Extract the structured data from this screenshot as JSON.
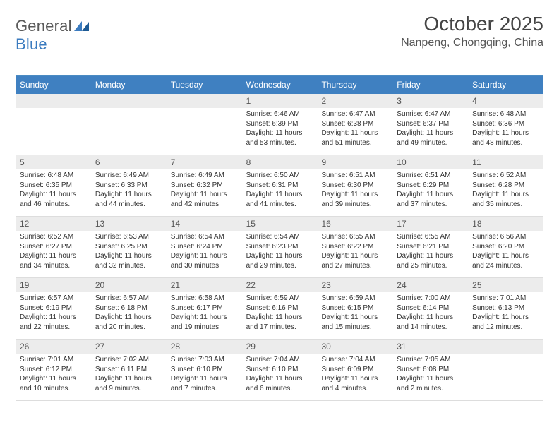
{
  "logo": {
    "text1": "General",
    "text2": "Blue"
  },
  "colors": {
    "headerBar": "#3f80c1",
    "headerBarTop": "#4a8bc2",
    "dayNumBg": "#ececec",
    "text": "#333333",
    "subtext": "#555555",
    "white": "#ffffff",
    "logoBlue": "#3b7bbf",
    "rowBorder": "#dddddd"
  },
  "header": {
    "title": "October 2025",
    "subtitle": "Nanpeng, Chongqing, China"
  },
  "dayNames": [
    "Sunday",
    "Monday",
    "Tuesday",
    "Wednesday",
    "Thursday",
    "Friday",
    "Saturday"
  ],
  "weeks": [
    [
      {
        "num": "",
        "lines": []
      },
      {
        "num": "",
        "lines": []
      },
      {
        "num": "",
        "lines": []
      },
      {
        "num": "1",
        "lines": [
          "Sunrise: 6:46 AM",
          "Sunset: 6:39 PM",
          "Daylight: 11 hours",
          "and 53 minutes."
        ]
      },
      {
        "num": "2",
        "lines": [
          "Sunrise: 6:47 AM",
          "Sunset: 6:38 PM",
          "Daylight: 11 hours",
          "and 51 minutes."
        ]
      },
      {
        "num": "3",
        "lines": [
          "Sunrise: 6:47 AM",
          "Sunset: 6:37 PM",
          "Daylight: 11 hours",
          "and 49 minutes."
        ]
      },
      {
        "num": "4",
        "lines": [
          "Sunrise: 6:48 AM",
          "Sunset: 6:36 PM",
          "Daylight: 11 hours",
          "and 48 minutes."
        ]
      }
    ],
    [
      {
        "num": "5",
        "lines": [
          "Sunrise: 6:48 AM",
          "Sunset: 6:35 PM",
          "Daylight: 11 hours",
          "and 46 minutes."
        ]
      },
      {
        "num": "6",
        "lines": [
          "Sunrise: 6:49 AM",
          "Sunset: 6:33 PM",
          "Daylight: 11 hours",
          "and 44 minutes."
        ]
      },
      {
        "num": "7",
        "lines": [
          "Sunrise: 6:49 AM",
          "Sunset: 6:32 PM",
          "Daylight: 11 hours",
          "and 42 minutes."
        ]
      },
      {
        "num": "8",
        "lines": [
          "Sunrise: 6:50 AM",
          "Sunset: 6:31 PM",
          "Daylight: 11 hours",
          "and 41 minutes."
        ]
      },
      {
        "num": "9",
        "lines": [
          "Sunrise: 6:51 AM",
          "Sunset: 6:30 PM",
          "Daylight: 11 hours",
          "and 39 minutes."
        ]
      },
      {
        "num": "10",
        "lines": [
          "Sunrise: 6:51 AM",
          "Sunset: 6:29 PM",
          "Daylight: 11 hours",
          "and 37 minutes."
        ]
      },
      {
        "num": "11",
        "lines": [
          "Sunrise: 6:52 AM",
          "Sunset: 6:28 PM",
          "Daylight: 11 hours",
          "and 35 minutes."
        ]
      }
    ],
    [
      {
        "num": "12",
        "lines": [
          "Sunrise: 6:52 AM",
          "Sunset: 6:27 PM",
          "Daylight: 11 hours",
          "and 34 minutes."
        ]
      },
      {
        "num": "13",
        "lines": [
          "Sunrise: 6:53 AM",
          "Sunset: 6:25 PM",
          "Daylight: 11 hours",
          "and 32 minutes."
        ]
      },
      {
        "num": "14",
        "lines": [
          "Sunrise: 6:54 AM",
          "Sunset: 6:24 PM",
          "Daylight: 11 hours",
          "and 30 minutes."
        ]
      },
      {
        "num": "15",
        "lines": [
          "Sunrise: 6:54 AM",
          "Sunset: 6:23 PM",
          "Daylight: 11 hours",
          "and 29 minutes."
        ]
      },
      {
        "num": "16",
        "lines": [
          "Sunrise: 6:55 AM",
          "Sunset: 6:22 PM",
          "Daylight: 11 hours",
          "and 27 minutes."
        ]
      },
      {
        "num": "17",
        "lines": [
          "Sunrise: 6:55 AM",
          "Sunset: 6:21 PM",
          "Daylight: 11 hours",
          "and 25 minutes."
        ]
      },
      {
        "num": "18",
        "lines": [
          "Sunrise: 6:56 AM",
          "Sunset: 6:20 PM",
          "Daylight: 11 hours",
          "and 24 minutes."
        ]
      }
    ],
    [
      {
        "num": "19",
        "lines": [
          "Sunrise: 6:57 AM",
          "Sunset: 6:19 PM",
          "Daylight: 11 hours",
          "and 22 minutes."
        ]
      },
      {
        "num": "20",
        "lines": [
          "Sunrise: 6:57 AM",
          "Sunset: 6:18 PM",
          "Daylight: 11 hours",
          "and 20 minutes."
        ]
      },
      {
        "num": "21",
        "lines": [
          "Sunrise: 6:58 AM",
          "Sunset: 6:17 PM",
          "Daylight: 11 hours",
          "and 19 minutes."
        ]
      },
      {
        "num": "22",
        "lines": [
          "Sunrise: 6:59 AM",
          "Sunset: 6:16 PM",
          "Daylight: 11 hours",
          "and 17 minutes."
        ]
      },
      {
        "num": "23",
        "lines": [
          "Sunrise: 6:59 AM",
          "Sunset: 6:15 PM",
          "Daylight: 11 hours",
          "and 15 minutes."
        ]
      },
      {
        "num": "24",
        "lines": [
          "Sunrise: 7:00 AM",
          "Sunset: 6:14 PM",
          "Daylight: 11 hours",
          "and 14 minutes."
        ]
      },
      {
        "num": "25",
        "lines": [
          "Sunrise: 7:01 AM",
          "Sunset: 6:13 PM",
          "Daylight: 11 hours",
          "and 12 minutes."
        ]
      }
    ],
    [
      {
        "num": "26",
        "lines": [
          "Sunrise: 7:01 AM",
          "Sunset: 6:12 PM",
          "Daylight: 11 hours",
          "and 10 minutes."
        ]
      },
      {
        "num": "27",
        "lines": [
          "Sunrise: 7:02 AM",
          "Sunset: 6:11 PM",
          "Daylight: 11 hours",
          "and 9 minutes."
        ]
      },
      {
        "num": "28",
        "lines": [
          "Sunrise: 7:03 AM",
          "Sunset: 6:10 PM",
          "Daylight: 11 hours",
          "and 7 minutes."
        ]
      },
      {
        "num": "29",
        "lines": [
          "Sunrise: 7:04 AM",
          "Sunset: 6:10 PM",
          "Daylight: 11 hours",
          "and 6 minutes."
        ]
      },
      {
        "num": "30",
        "lines": [
          "Sunrise: 7:04 AM",
          "Sunset: 6:09 PM",
          "Daylight: 11 hours",
          "and 4 minutes."
        ]
      },
      {
        "num": "31",
        "lines": [
          "Sunrise: 7:05 AM",
          "Sunset: 6:08 PM",
          "Daylight: 11 hours",
          "and 2 minutes."
        ]
      },
      {
        "num": "",
        "lines": []
      }
    ]
  ]
}
